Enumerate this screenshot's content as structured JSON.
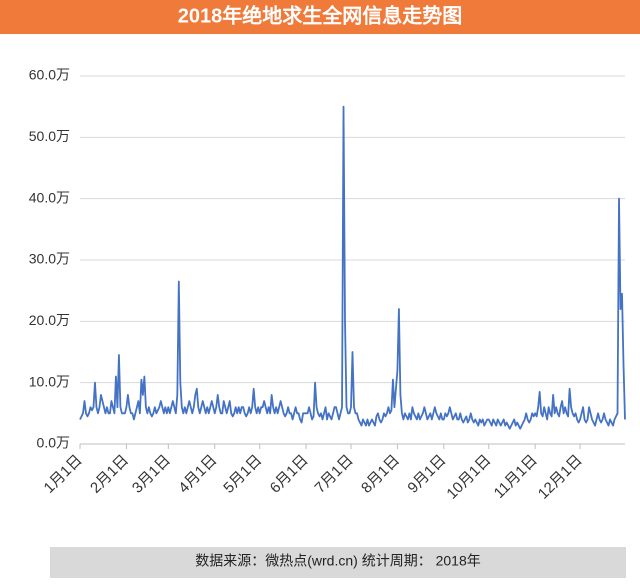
{
  "chart_data": {
    "type": "line",
    "title": "2018年绝地求生全网信息走势图",
    "source": "数据来源：微热点(wrd.cn)  统计周期： 2018年",
    "color": "#4472c4",
    "grid": true,
    "ylim": [
      0,
      60
    ],
    "yticks": [
      {
        "value": 0,
        "label": "0.0万"
      },
      {
        "value": 10,
        "label": "10.0万"
      },
      {
        "value": 20,
        "label": "20.0万"
      },
      {
        "value": 30,
        "label": "30.0万"
      },
      {
        "value": 40,
        "label": "40.0万"
      },
      {
        "value": 50,
        "label": "50.0万"
      },
      {
        "value": 60,
        "label": "60.0万"
      }
    ],
    "categories": [
      "1月1日",
      null,
      null,
      null,
      null,
      null,
      null,
      null,
      null,
      null,
      null,
      null,
      null,
      null,
      null,
      null,
      null,
      null,
      null,
      null,
      null,
      null,
      null,
      null,
      null,
      null,
      null,
      null,
      null,
      null,
      null,
      "2月1日",
      null,
      null,
      null,
      null,
      null,
      null,
      null,
      null,
      null,
      null,
      null,
      null,
      null,
      null,
      null,
      null,
      null,
      null,
      null,
      null,
      null,
      null,
      null,
      null,
      null,
      null,
      null,
      "3月1日",
      null,
      null,
      null,
      null,
      null,
      null,
      null,
      null,
      null,
      null,
      null,
      null,
      null,
      null,
      null,
      null,
      null,
      null,
      null,
      null,
      null,
      null,
      null,
      null,
      null,
      null,
      null,
      null,
      null,
      null,
      "4月1日",
      null,
      null,
      null,
      null,
      null,
      null,
      null,
      null,
      null,
      null,
      null,
      null,
      null,
      null,
      null,
      null,
      null,
      null,
      null,
      null,
      null,
      null,
      null,
      null,
      null,
      null,
      null,
      null,
      null,
      "5月1日",
      null,
      null,
      null,
      null,
      null,
      null,
      null,
      null,
      null,
      null,
      null,
      null,
      null,
      null,
      null,
      null,
      null,
      null,
      null,
      null,
      null,
      null,
      null,
      null,
      null,
      null,
      null,
      null,
      null,
      null,
      "6月1日",
      null,
      null,
      null,
      null,
      null,
      null,
      null,
      null,
      null,
      null,
      null,
      null,
      null,
      null,
      null,
      null,
      null,
      null,
      null,
      null,
      null,
      null,
      null,
      null,
      null,
      null,
      null,
      null,
      null,
      "7月1日",
      null,
      null,
      null,
      null,
      null,
      null,
      null,
      null,
      null,
      null,
      null,
      null,
      null,
      null,
      null,
      null,
      null,
      null,
      null,
      null,
      null,
      null,
      null,
      null,
      null,
      null,
      null,
      null,
      null,
      null,
      "8月1日",
      null,
      null,
      null,
      null,
      null,
      null,
      null,
      null,
      null,
      null,
      null,
      null,
      null,
      null,
      null,
      null,
      null,
      null,
      null,
      null,
      null,
      null,
      null,
      null,
      null,
      null,
      null,
      null,
      null,
      null,
      "9月1日",
      null,
      null,
      null,
      null,
      null,
      null,
      null,
      null,
      null,
      null,
      null,
      null,
      null,
      null,
      null,
      null,
      null,
      null,
      null,
      null,
      null,
      null,
      null,
      null,
      null,
      null,
      null,
      null,
      null,
      "10月1日",
      null,
      null,
      null,
      null,
      null,
      null,
      null,
      null,
      null,
      null,
      null,
      null,
      null,
      null,
      null,
      null,
      null,
      null,
      null,
      null,
      null,
      null,
      null,
      null,
      null,
      null,
      null,
      null,
      null,
      null,
      "11月1日",
      null,
      null,
      null,
      null,
      null,
      null,
      null,
      null,
      null,
      null,
      null,
      null,
      null,
      null,
      null,
      null,
      null,
      null,
      null,
      null,
      null,
      null,
      null,
      null,
      null,
      null,
      null,
      null,
      null,
      "12月1日",
      null,
      null,
      null,
      null,
      null,
      null,
      null,
      null,
      null,
      null,
      null,
      null,
      null,
      null,
      null,
      null,
      null,
      null,
      null,
      null,
      null,
      null,
      null,
      null,
      null,
      null,
      null,
      null,
      null,
      null
    ],
    "values": [
      4,
      4.5,
      5,
      7,
      5,
      4.5,
      5,
      6,
      5.5,
      6,
      10,
      6,
      5,
      6,
      8,
      7,
      6,
      5,
      6,
      5,
      5,
      7,
      6,
      5,
      11,
      6,
      14.5,
      6,
      5,
      5,
      5,
      6,
      8,
      6,
      5,
      5,
      4,
      5,
      6,
      7,
      5,
      10.5,
      8,
      11,
      6,
      5,
      6,
      5,
      4.5,
      5,
      6,
      5,
      5.5,
      6,
      7,
      6,
      5,
      6,
      5,
      6,
      5,
      6,
      7,
      6,
      5,
      8,
      26.5,
      10,
      6,
      5,
      6,
      5,
      6,
      7,
      6,
      5,
      6,
      8,
      9,
      6,
      5,
      6,
      7,
      6,
      5,
      6,
      5,
      6,
      7,
      6,
      5,
      6,
      8,
      6,
      5,
      5,
      7,
      6,
      5,
      6,
      7,
      5,
      4.5,
      5,
      6,
      5,
      6,
      5,
      6,
      6,
      5,
      4.5,
      5,
      6,
      5,
      6,
      9,
      6,
      5,
      6,
      5,
      6,
      6,
      7,
      6,
      5,
      6,
      5,
      8,
      6,
      5,
      6,
      5,
      6,
      7,
      6,
      5,
      4.5,
      5,
      6,
      5,
      5,
      4,
      5,
      6,
      5,
      5,
      4,
      3.5,
      5,
      5,
      5,
      5,
      6,
      5,
      4,
      4.5,
      10,
      6,
      5,
      4.5,
      5,
      4,
      5,
      6,
      4,
      5,
      4.5,
      4,
      5,
      6,
      6,
      5,
      4,
      5,
      6,
      55,
      20,
      6,
      5,
      5,
      6,
      15,
      6,
      5,
      5,
      4,
      3.5,
      3,
      4,
      3.5,
      3,
      4,
      3,
      3.5,
      4,
      3.5,
      3,
      4.5,
      5,
      4,
      3.5,
      4,
      5,
      4.5,
      5,
      6,
      5,
      5.5,
      10.5,
      6,
      9,
      12,
      22,
      8,
      5,
      4,
      5,
      4.5,
      4,
      5,
      4,
      6,
      5,
      4.5,
      4,
      5,
      4,
      4.5,
      5,
      6,
      5,
      4,
      4.5,
      5,
      4,
      5,
      6,
      5,
      4.5,
      4,
      5,
      4,
      4,
      5,
      4.5,
      5,
      6,
      5,
      4,
      4.5,
      5,
      4,
      4,
      5,
      4,
      3.5,
      4,
      4.5,
      3.5,
      4,
      5,
      4,
      3.5,
      4,
      3.5,
      3,
      4,
      3.5,
      4,
      3,
      3.5,
      4,
      4,
      3.5,
      3,
      4,
      3.5,
      3,
      4,
      3.5,
      3,
      3.5,
      4,
      3,
      3.5,
      3,
      2.5,
      3,
      3.5,
      4,
      3,
      3.5,
      3,
      2.5,
      3,
      3.5,
      4,
      5,
      4,
      3.5,
      4,
      5,
      4.5,
      5,
      4.5,
      6,
      8.5,
      5,
      4.5,
      6,
      5,
      4,
      6,
      5,
      4.5,
      8,
      5,
      6,
      5,
      4.5,
      6,
      7,
      5,
      6,
      5,
      4.5,
      9,
      6,
      5,
      4.5,
      5,
      4,
      3.5,
      4,
      5,
      6,
      4,
      3.5,
      4,
      6,
      5,
      4,
      3.5,
      3,
      4,
      5,
      4,
      3.5,
      4,
      5,
      4,
      3.5,
      3,
      4,
      3.5,
      3,
      4,
      4.5,
      5,
      40,
      22,
      24.5,
      13,
      4
    ]
  }
}
